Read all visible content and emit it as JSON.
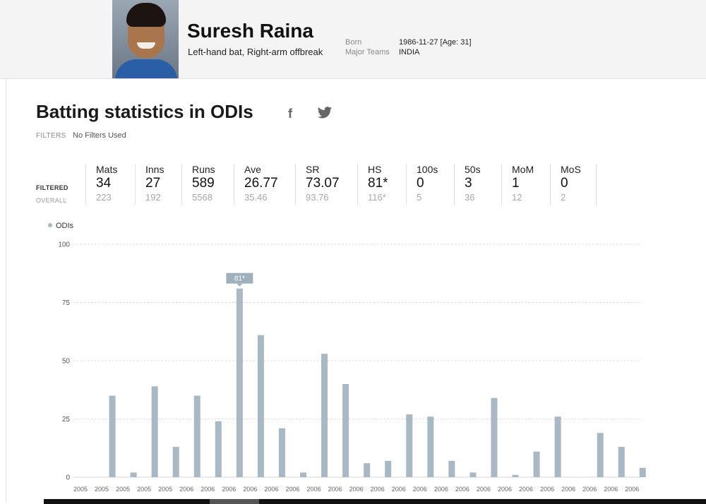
{
  "player": {
    "name": "Suresh Raina",
    "style": "Left-hand bat, Right-arm offbreak",
    "born_label": "Born",
    "born_value": "1986-11-27 [Age: 31]",
    "teams_label": "Major Teams",
    "teams_value": "INDIA"
  },
  "page": {
    "title": "Batting statistics in ODIs",
    "facebook_icon": "f",
    "filters_label": "FILTERS",
    "filters_value": "No Filters Used",
    "filtered_label": "FILTERED",
    "overall_label": "OVERALL"
  },
  "stats": [
    {
      "header": "Mats",
      "filtered": "34",
      "overall": "223"
    },
    {
      "header": "Inns",
      "filtered": "27",
      "overall": "192"
    },
    {
      "header": "Runs",
      "filtered": "589",
      "overall": "5568"
    },
    {
      "header": "Ave",
      "filtered": "26.77",
      "overall": "35.46"
    },
    {
      "header": "SR",
      "filtered": "73.07",
      "overall": "93.76"
    },
    {
      "header": "HS",
      "filtered": "81*",
      "overall": "116*"
    },
    {
      "header": "100s",
      "filtered": "0",
      "overall": "5"
    },
    {
      "header": "50s",
      "filtered": "3",
      "overall": "36"
    },
    {
      "header": "MoM",
      "filtered": "1",
      "overall": "12"
    },
    {
      "header": "MoS",
      "filtered": "0",
      "overall": "2"
    }
  ],
  "chart_data": {
    "type": "bar",
    "legend": [
      "ODIs"
    ],
    "series": [
      {
        "name": "ODIs",
        "color": "#a8b8c4",
        "values": [
          null,
          35,
          2,
          39,
          13,
          35,
          24,
          81,
          61,
          21,
          2,
          53,
          40,
          6,
          7,
          27,
          26,
          7,
          2,
          34,
          1,
          11,
          26,
          null,
          19,
          13,
          4
        ]
      }
    ],
    "categories": [
      "2005",
      "2005",
      "2005",
      "2005",
      "2005",
      "2006",
      "2006",
      "2006",
      "2006",
      "2006",
      "2006",
      "2006",
      "2006",
      "2006",
      "2006",
      "2006",
      "2006",
      "2006",
      "2006",
      "2006",
      "2006",
      "2006",
      "2006",
      "2006",
      "2006",
      "2006",
      "2006"
    ],
    "ylim": [
      0,
      100
    ],
    "yticks": [
      0,
      25,
      50,
      75,
      100
    ],
    "annotation": {
      "label": "81*",
      "index": 7
    },
    "grid": true
  }
}
